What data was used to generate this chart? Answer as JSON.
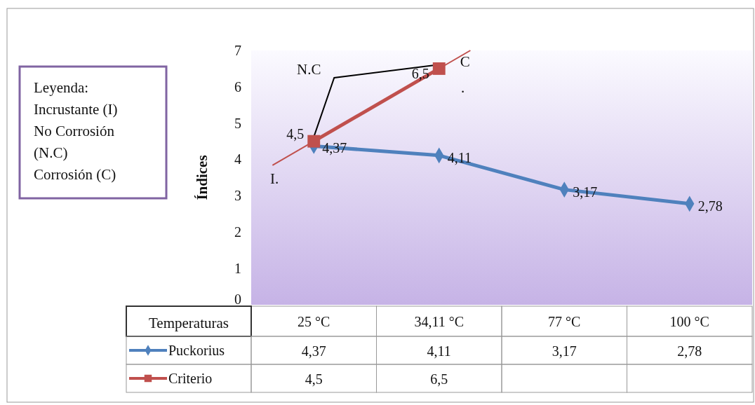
{
  "chart_data": {
    "type": "line",
    "xlabel": "Temperaturas",
    "ylabel": "Índices",
    "categories": [
      "25 °C",
      "34,11 °C",
      "77 °C",
      "100 °C"
    ],
    "series": [
      {
        "name": "Puckorius",
        "color": "#4f81bd",
        "values": [
          4.37,
          4.11,
          3.17,
          2.78
        ],
        "marker": "diamond",
        "value_labels": [
          "4,37",
          "4,11",
          "3,17",
          "2,78"
        ]
      },
      {
        "name": "Criterio",
        "color": "#c0504d",
        "values": [
          4.5,
          6.5,
          null,
          null
        ],
        "marker": "square",
        "value_labels": [
          "4,5",
          "6,5",
          null,
          null
        ]
      }
    ],
    "ylim": [
      0,
      7
    ],
    "yticks": [
      0,
      1,
      2,
      3,
      4,
      5,
      6,
      7
    ],
    "legend": "bottom",
    "annotations": [
      "Leyenda:\nIncrustante (I)\nNo Corrosión\n(N.C)\nCorrosión (C)",
      "I.",
      "N.C",
      {
        "text": "C",
        "x": "34,11 °C",
        "y": 6.6
      },
      "."
    ]
  }
}
